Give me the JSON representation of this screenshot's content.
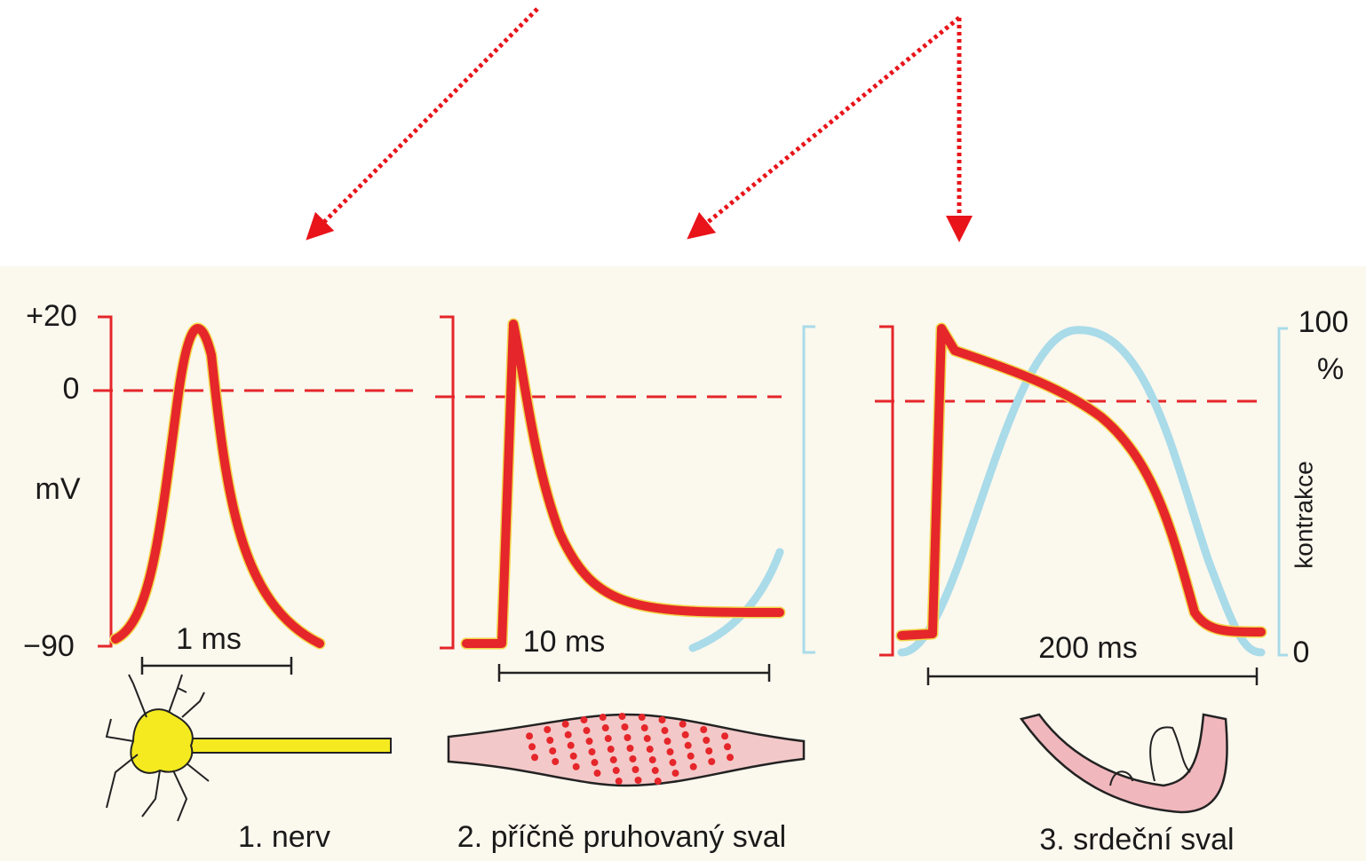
{
  "left_axis": {
    "top": "+20",
    "zero": "0",
    "unit": "mV",
    "bottom": "−90"
  },
  "right_axis": {
    "top": "100",
    "unit": "%",
    "label": "kontrakce",
    "bottom": "0"
  },
  "panels": [
    {
      "scale": "1 ms",
      "caption": "1. nerv"
    },
    {
      "scale": "10 ms",
      "caption": "2. příčně pruhovaný sval"
    },
    {
      "scale": "200 ms",
      "caption": "3. srdeční sval"
    }
  ]
}
